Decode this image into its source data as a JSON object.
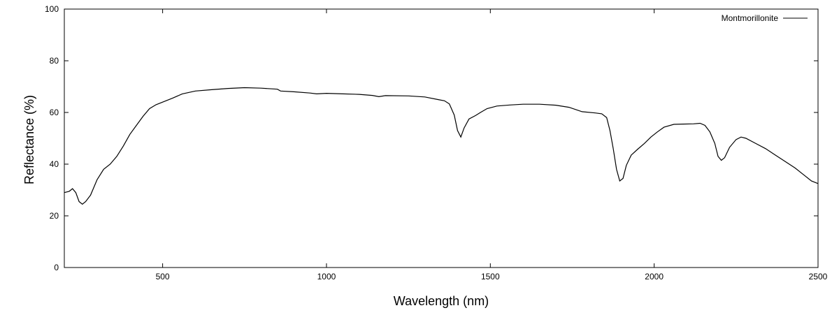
{
  "chart_data": {
    "type": "line",
    "title": "",
    "xlabel": "Wavelength (nm)",
    "ylabel": "Reflectance (%)",
    "xlim": [
      200,
      2500
    ],
    "ylim": [
      0,
      100
    ],
    "x_ticks": [
      500,
      1000,
      1500,
      2000,
      2500
    ],
    "y_ticks": [
      0,
      20,
      40,
      60,
      80,
      100
    ],
    "legend_position": "top-right",
    "grid": false,
    "series": [
      {
        "name": "Montmorillonite",
        "color": "#000000",
        "points": [
          [
            200,
            29
          ],
          [
            215,
            29.5
          ],
          [
            225,
            30.5
          ],
          [
            235,
            29
          ],
          [
            245,
            25.5
          ],
          [
            255,
            24.5
          ],
          [
            265,
            25.5
          ],
          [
            280,
            28
          ],
          [
            300,
            34
          ],
          [
            320,
            38
          ],
          [
            340,
            40
          ],
          [
            360,
            43
          ],
          [
            380,
            47
          ],
          [
            400,
            51.5
          ],
          [
            420,
            55
          ],
          [
            440,
            58.5
          ],
          [
            460,
            61.5
          ],
          [
            480,
            63
          ],
          [
            500,
            64
          ],
          [
            530,
            65.5
          ],
          [
            560,
            67.2
          ],
          [
            600,
            68.3
          ],
          [
            650,
            68.8
          ],
          [
            700,
            69.3
          ],
          [
            750,
            69.6
          ],
          [
            800,
            69.4
          ],
          [
            850,
            69
          ],
          [
            860,
            68.3
          ],
          [
            900,
            68
          ],
          [
            950,
            67.5
          ],
          [
            970,
            67.2
          ],
          [
            1000,
            67.4
          ],
          [
            1050,
            67.2
          ],
          [
            1100,
            67
          ],
          [
            1140,
            66.6
          ],
          [
            1160,
            66.1
          ],
          [
            1180,
            66.5
          ],
          [
            1250,
            66.4
          ],
          [
            1300,
            66
          ],
          [
            1340,
            65
          ],
          [
            1360,
            64.5
          ],
          [
            1375,
            63.3
          ],
          [
            1390,
            59
          ],
          [
            1400,
            53
          ],
          [
            1410,
            50.5
          ],
          [
            1420,
            54
          ],
          [
            1435,
            57.5
          ],
          [
            1455,
            58.8
          ],
          [
            1470,
            60
          ],
          [
            1490,
            61.5
          ],
          [
            1520,
            62.5
          ],
          [
            1560,
            62.9
          ],
          [
            1600,
            63.2
          ],
          [
            1650,
            63.2
          ],
          [
            1700,
            62.8
          ],
          [
            1740,
            62
          ],
          [
            1780,
            60.3
          ],
          [
            1820,
            59.8
          ],
          [
            1840,
            59.5
          ],
          [
            1855,
            58
          ],
          [
            1865,
            53
          ],
          [
            1875,
            46
          ],
          [
            1885,
            38
          ],
          [
            1895,
            33.5
          ],
          [
            1905,
            34.5
          ],
          [
            1915,
            39.5
          ],
          [
            1930,
            43.5
          ],
          [
            1950,
            45.8
          ],
          [
            1970,
            48
          ],
          [
            1990,
            50.5
          ],
          [
            2010,
            52.5
          ],
          [
            2030,
            54.3
          ],
          [
            2060,
            55.4
          ],
          [
            2090,
            55.5
          ],
          [
            2120,
            55.6
          ],
          [
            2140,
            55.8
          ],
          [
            2155,
            55
          ],
          [
            2170,
            52.5
          ],
          [
            2185,
            48
          ],
          [
            2195,
            43
          ],
          [
            2205,
            41.5
          ],
          [
            2215,
            42.5
          ],
          [
            2230,
            46.5
          ],
          [
            2250,
            49.5
          ],
          [
            2265,
            50.5
          ],
          [
            2280,
            50
          ],
          [
            2310,
            48
          ],
          [
            2340,
            46
          ],
          [
            2370,
            43.5
          ],
          [
            2400,
            41
          ],
          [
            2430,
            38.5
          ],
          [
            2460,
            35.5
          ],
          [
            2480,
            33.5
          ],
          [
            2500,
            32.5
          ]
        ]
      }
    ]
  }
}
